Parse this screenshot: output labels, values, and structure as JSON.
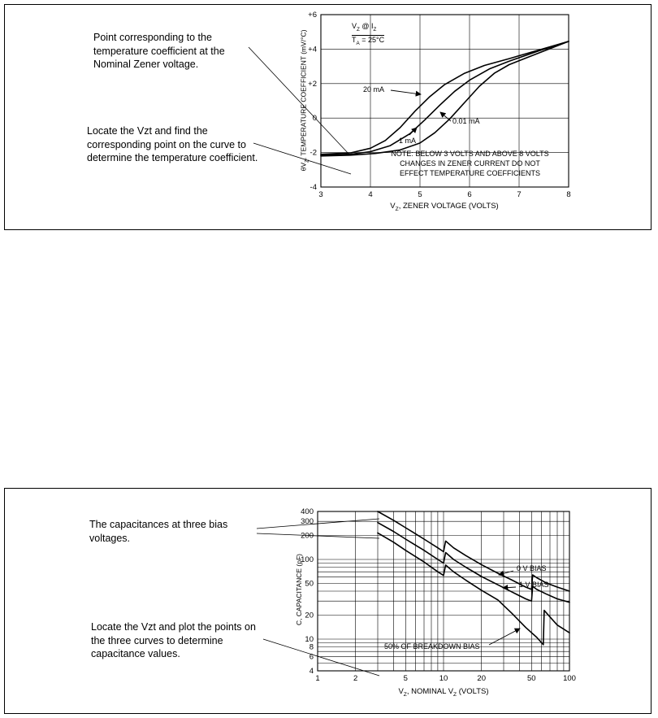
{
  "page": {
    "background": "#ffffff",
    "ink": "#000000"
  },
  "figures": [
    {
      "name": "temperature coefficient figure",
      "annotations": [
        "Point corresponding to the temperature coefficient at the Nominal Zener voltage.",
        "Locate the Vzt and find the corresponding point on the curve to determine the temperature coefficient."
      ]
    },
    {
      "name": "capacitance figure",
      "annotations": [
        "The capacitances at three bias voltages.",
        "Locate the Vzt and plot the points on the three curves to determine capacitance values."
      ]
    }
  ],
  "chart_data": [
    {
      "type": "line",
      "title": "",
      "xlabel": "VZ, ZENER VOLTAGE (VOLTS)",
      "ylabel": "θVZ, TEMPERATURE COEFFICIENT (mV/°C)",
      "xlabel_parts": [
        {
          "t": "V"
        },
        {
          "t": "Z",
          "sub": true
        },
        {
          "t": ", ZENER VOLTAGE (VOLTS)"
        }
      ],
      "ylabel_parts": [
        {
          "t": "θV"
        },
        {
          "t": "Z",
          "sub": true
        },
        {
          "t": ", TEMPERATURE COEFFICIENT (mV/°C)"
        }
      ],
      "x_scale": "linear",
      "y_scale": "linear",
      "xlim": [
        3,
        8
      ],
      "ylim": [
        -4,
        6
      ],
      "grid": "on",
      "xticks": [
        3,
        4,
        5,
        6,
        7,
        8
      ],
      "xtick_labels": [
        "3",
        "4",
        "5",
        "6",
        "7",
        "8"
      ],
      "yticks": [
        6,
        4,
        2,
        0,
        -2,
        -4
      ],
      "ytick_labels": [
        "+6",
        "+4",
        "+2",
        "0",
        "-2",
        "-4"
      ],
      "legend_lines": [
        [
          {
            "t": "V"
          },
          {
            "t": "Z",
            "sub": true
          },
          {
            "t": " @ I"
          },
          {
            "t": "Z",
            "sub": true
          }
        ],
        [
          {
            "t": "T"
          },
          {
            "t": "A",
            "sub": true
          },
          {
            "t": " = 25°C"
          }
        ]
      ],
      "note_lines": [
        "NOTE: BELOW 3 VOLTS AND ABOVE 8 VOLTS",
        "CHANGES IN ZENER CURRENT DO NOT",
        "EFFECT TEMPERATURE COEFFICIENTS"
      ],
      "series": [
        {
          "name": "20 mA",
          "points": [
            [
              3,
              -2.1
            ],
            [
              3.6,
              -2.02
            ],
            [
              4,
              -1.75
            ],
            [
              4.3,
              -1.3
            ],
            [
              4.6,
              -0.55
            ],
            [
              4.9,
              0.4
            ],
            [
              5.2,
              1.25
            ],
            [
              5.5,
              1.95
            ],
            [
              5.9,
              2.6
            ],
            [
              6.3,
              3.05
            ],
            [
              6.8,
              3.45
            ],
            [
              7.4,
              3.95
            ],
            [
              8,
              4.45
            ]
          ]
        },
        {
          "name": "1 mA",
          "points": [
            [
              3,
              -2.15
            ],
            [
              3.6,
              -2.1
            ],
            [
              4,
              -1.95
            ],
            [
              4.4,
              -1.6
            ],
            [
              4.8,
              -0.9
            ],
            [
              5.1,
              -0.1
            ],
            [
              5.4,
              0.75
            ],
            [
              5.7,
              1.55
            ],
            [
              6,
              2.2
            ],
            [
              6.4,
              2.85
            ],
            [
              6.8,
              3.3
            ],
            [
              7.4,
              3.9
            ],
            [
              8,
              4.45
            ]
          ]
        },
        {
          "name": "0.01 mA",
          "points": [
            [
              3,
              -2.2
            ],
            [
              3.6,
              -2.15
            ],
            [
              4.1,
              -2.05
            ],
            [
              4.6,
              -1.85
            ],
            [
              5,
              -1.45
            ],
            [
              5.3,
              -0.85
            ],
            [
              5.6,
              -0.05
            ],
            [
              5.9,
              0.9
            ],
            [
              6.2,
              1.85
            ],
            [
              6.5,
              2.6
            ],
            [
              6.8,
              3.1
            ],
            [
              7.2,
              3.55
            ],
            [
              7.6,
              4.0
            ],
            [
              8,
              4.45
            ]
          ]
        }
      ]
    },
    {
      "type": "line",
      "title": "",
      "xlabel": "VZ, NOMINAL VZ (VOLTS)",
      "ylabel": "C, CAPACITANCE (pF)",
      "xlabel_parts": [
        {
          "t": "V"
        },
        {
          "t": "Z",
          "sub": true
        },
        {
          "t": ", NOMINAL V"
        },
        {
          "t": "Z",
          "sub": true
        },
        {
          "t": " (VOLTS)"
        }
      ],
      "ylabel_parts": [
        {
          "t": "C, CAPACITANCE (pF)"
        }
      ],
      "x_scale": "log",
      "y_scale": "log",
      "xlim": [
        1,
        100
      ],
      "ylim": [
        4,
        400
      ],
      "grid": "on",
      "xticks": [
        1,
        2,
        5,
        10,
        20,
        50,
        100
      ],
      "xtick_labels": [
        "1",
        "2",
        "5",
        "10",
        "20",
        "50",
        "100"
      ],
      "xgrid": [
        1,
        2,
        3,
        4,
        5,
        6,
        7,
        8,
        9,
        10,
        20,
        30,
        40,
        50,
        60,
        70,
        80,
        90,
        100
      ],
      "yticks": [
        400,
        300,
        200,
        100,
        50,
        20,
        10,
        8,
        6,
        4
      ],
      "ytick_labels": [
        "400",
        "300",
        "200",
        "100",
        "50",
        "20",
        "10",
        "8",
        "6",
        "4"
      ],
      "ygrid": [
        4,
        5,
        6,
        7,
        8,
        9,
        10,
        20,
        30,
        40,
        50,
        60,
        70,
        80,
        90,
        100,
        200,
        300,
        400
      ],
      "series": [
        {
          "name": "0 V BIAS",
          "points": [
            [
              3,
              400
            ],
            [
              4,
              310
            ],
            [
              5,
              250
            ],
            [
              7,
              180
            ],
            [
              9,
              140
            ],
            [
              10,
              125
            ],
            [
              10.4,
              170
            ],
            [
              12,
              140
            ],
            [
              15,
              112
            ],
            [
              20,
              86
            ],
            [
              27,
              67
            ],
            [
              35,
              55
            ],
            [
              45,
              45
            ],
            [
              50,
              42
            ],
            [
              51,
              64
            ],
            [
              55,
              59
            ],
            [
              65,
              51
            ],
            [
              80,
              45
            ],
            [
              100,
              40
            ]
          ]
        },
        {
          "name": "1 V BIAS",
          "points": [
            [
              3,
              290
            ],
            [
              4,
              225
            ],
            [
              5,
              180
            ],
            [
              7,
              130
            ],
            [
              9,
              100
            ],
            [
              10,
              90
            ],
            [
              10.4,
              122
            ],
            [
              12,
              100
            ],
            [
              15,
              80
            ],
            [
              20,
              61
            ],
            [
              27,
              48
            ],
            [
              35,
              39
            ],
            [
              45,
              32
            ],
            [
              50,
              30
            ],
            [
              51,
              46
            ],
            [
              55,
              42
            ],
            [
              65,
              37
            ],
            [
              80,
              32
            ],
            [
              100,
              29
            ]
          ]
        },
        {
          "name": "50% OF BREAKDOWN BIAS",
          "points": [
            [
              3,
              215
            ],
            [
              4,
              165
            ],
            [
              5,
              130
            ],
            [
              7,
              93
            ],
            [
              9,
              70
            ],
            [
              10,
              63
            ],
            [
              10.4,
              85
            ],
            [
              12,
              70
            ],
            [
              15,
              55
            ],
            [
              20,
              41
            ],
            [
              27,
              31
            ],
            [
              35,
              21
            ],
            [
              45,
              14
            ],
            [
              55,
              10.5
            ],
            [
              62,
              8.5
            ],
            [
              63,
              23
            ],
            [
              70,
              19
            ],
            [
              80,
              15
            ],
            [
              100,
              12
            ]
          ]
        }
      ]
    }
  ]
}
